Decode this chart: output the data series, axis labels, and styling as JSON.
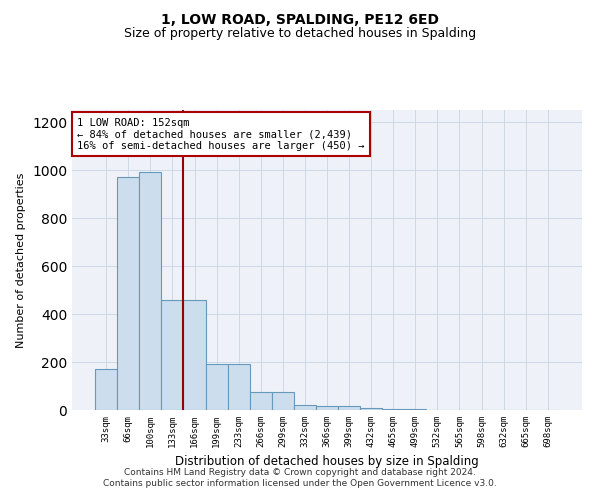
{
  "title": "1, LOW ROAD, SPALDING, PE12 6ED",
  "subtitle": "Size of property relative to detached houses in Spalding",
  "xlabel": "Distribution of detached houses by size in Spalding",
  "ylabel": "Number of detached properties",
  "bar_labels": [
    "33sqm",
    "66sqm",
    "100sqm",
    "133sqm",
    "166sqm",
    "199sqm",
    "233sqm",
    "266sqm",
    "299sqm",
    "332sqm",
    "366sqm",
    "399sqm",
    "432sqm",
    "465sqm",
    "499sqm",
    "532sqm",
    "565sqm",
    "598sqm",
    "632sqm",
    "665sqm",
    "698sqm"
  ],
  "bar_values": [
    170,
    970,
    990,
    460,
    460,
    190,
    190,
    75,
    75,
    20,
    15,
    15,
    10,
    5,
    5,
    0,
    0,
    0,
    0,
    0,
    0
  ],
  "bar_color": "#ccdded",
  "bar_edge_color": "#6699bb",
  "background_color": "#eef2f8",
  "annotation_text": "1 LOW ROAD: 152sqm\n← 84% of detached houses are smaller (2,439)\n16% of semi-detached houses are larger (450) →",
  "annotation_box_color": "white",
  "annotation_box_edge": "#aa0000",
  "vline_color": "#990000",
  "ylim": [
    0,
    1250
  ],
  "yticks": [
    0,
    200,
    400,
    600,
    800,
    1000,
    1200
  ],
  "footer": "Contains HM Land Registry data © Crown copyright and database right 2024.\nContains public sector information licensed under the Open Government Licence v3.0.",
  "vline_x": 3.5,
  "grid_color": "#c8d4e4",
  "title_fontsize": 10,
  "subtitle_fontsize": 9
}
